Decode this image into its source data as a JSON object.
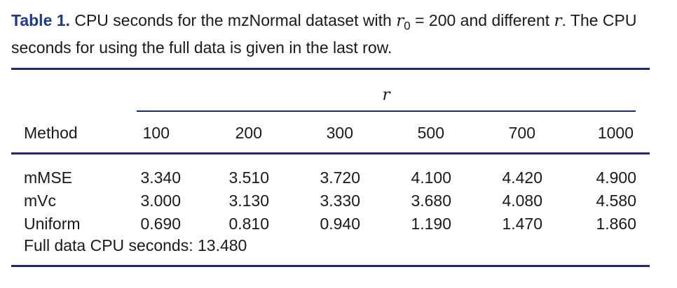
{
  "caption": {
    "label": "Table 1.",
    "text_before": "CPU seconds for the mzNormal dataset with",
    "symbol": "r",
    "subscript": "0",
    "text_after": "= 200 and different",
    "symbol2": "r",
    "text_end": ". The CPU seconds for using the full data is given in the last row."
  },
  "table": {
    "span_label": "r",
    "method_header": "Method",
    "columns": [
      "100",
      "200",
      "300",
      "500",
      "700",
      "1000"
    ],
    "rows": [
      {
        "method": "mMSE",
        "values": [
          "3.340",
          "3.510",
          "3.720",
          "4.100",
          "4.420",
          "4.900"
        ]
      },
      {
        "method": "mVc",
        "values": [
          "3.000",
          "3.130",
          "3.330",
          "3.680",
          "4.080",
          "4.580"
        ]
      },
      {
        "method": "Uniform",
        "values": [
          "0.690",
          "0.810",
          "0.940",
          "1.190",
          "1.470",
          "1.860"
        ]
      }
    ],
    "footer": "Full data CPU seconds: 13.480"
  }
}
